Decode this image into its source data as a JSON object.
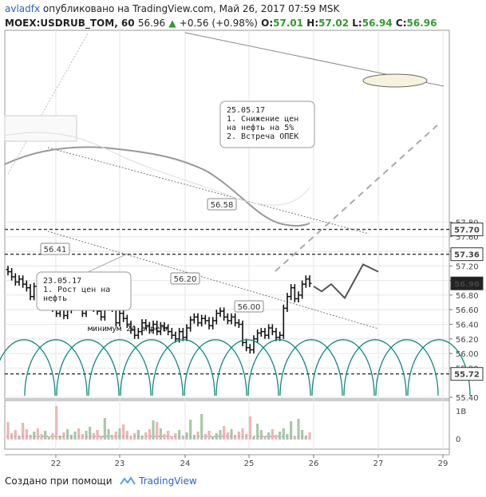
{
  "header": {
    "author": "avladfx",
    "published_text": "опубликовано на TradingView.com, Май 26, 2017 07:59 MSK",
    "symbol": "MOEX:USDRUB_TOM, 60",
    "last": "56.96",
    "change": "+0.56 (+0.98%)",
    "o_label": "O:",
    "o": "57.01",
    "h_label": "H:",
    "h": "57.02",
    "l_label": "L:",
    "l": "56.94",
    "c_label": "C:",
    "c": "56.96"
  },
  "footer": {
    "created_with": "Создано при помощи",
    "brand": "TradingView"
  },
  "colors": {
    "up": "#2e9b2e",
    "grid": "#e6e6e6",
    "dashed_level": "#333333",
    "cycles": "#0f8a7a",
    "volume_up": "#a7c8a7",
    "volume_down": "#f0b4b4"
  },
  "chart_data": {
    "type": "candlestick",
    "title": "MOEX:USDRUB_TOM, 60",
    "x_ticks": [
      "22",
      "23",
      "24",
      "25",
      "26",
      "27",
      "29"
    ],
    "y_ticks": [
      "57.80",
      "57.60",
      "57.40",
      "57.20",
      "57.00",
      "56.80",
      "56.60",
      "56.40",
      "56.20",
      "56.00",
      "55.80",
      "55.40"
    ],
    "ylim": [
      55.3,
      57.83
    ],
    "grid": true,
    "price_labels": [
      "57.70",
      "57.36",
      "56.96",
      "55.72"
    ],
    "levels": [
      57.7,
      57.36,
      55.72
    ],
    "last_price": 56.96,
    "point_labels": [
      "56.41",
      "56.20",
      "56.58",
      "56.00"
    ],
    "annotations": [
      {
        "lines": [
          "25.05.17",
          "1. Снижение цен",
          "на нефть на 5%",
          "2. Встреча ОПЕК"
        ]
      },
      {
        "lines": [
          "23.05.17",
          "1. Рост цен на",
          "нефть"
        ]
      },
      {
        "lines": [
          "минимум 24 апреля"
        ]
      }
    ],
    "volume_axis": [
      "1B",
      "0"
    ],
    "series": [
      {
        "name": "USDRUB_TOM",
        "closes": [
          57.12,
          57.05,
          56.98,
          57.02,
          56.95,
          56.9,
          56.78,
          56.92,
          56.85,
          56.7,
          56.75,
          56.95,
          56.62,
          56.55,
          56.72,
          56.52,
          56.6,
          56.65,
          56.8,
          56.7,
          56.55,
          56.68,
          56.72,
          56.62,
          56.58,
          56.5,
          56.65,
          56.66,
          56.62,
          56.42,
          56.55,
          56.48,
          56.4,
          56.32,
          56.25,
          56.3,
          56.42,
          56.38,
          56.32,
          56.4,
          56.3,
          56.38,
          56.35,
          56.3,
          56.25,
          56.2,
          56.3,
          56.22,
          56.35,
          56.46,
          56.5,
          56.42,
          56.48,
          56.45,
          56.38,
          56.45,
          56.55,
          56.58,
          56.5,
          56.45,
          56.5,
          56.42,
          56.4,
          56.15,
          56.08,
          56.05,
          56.2,
          56.28,
          56.3,
          56.25,
          56.35,
          56.3,
          56.22,
          56.25,
          56.62,
          56.78,
          56.9,
          56.75,
          56.8,
          56.95,
          57.02,
          56.96
        ]
      },
      {
        "name": "projection",
        "values": [
          56.92,
          56.85,
          56.95,
          56.76,
          57.22,
          57.12
        ]
      }
    ]
  }
}
